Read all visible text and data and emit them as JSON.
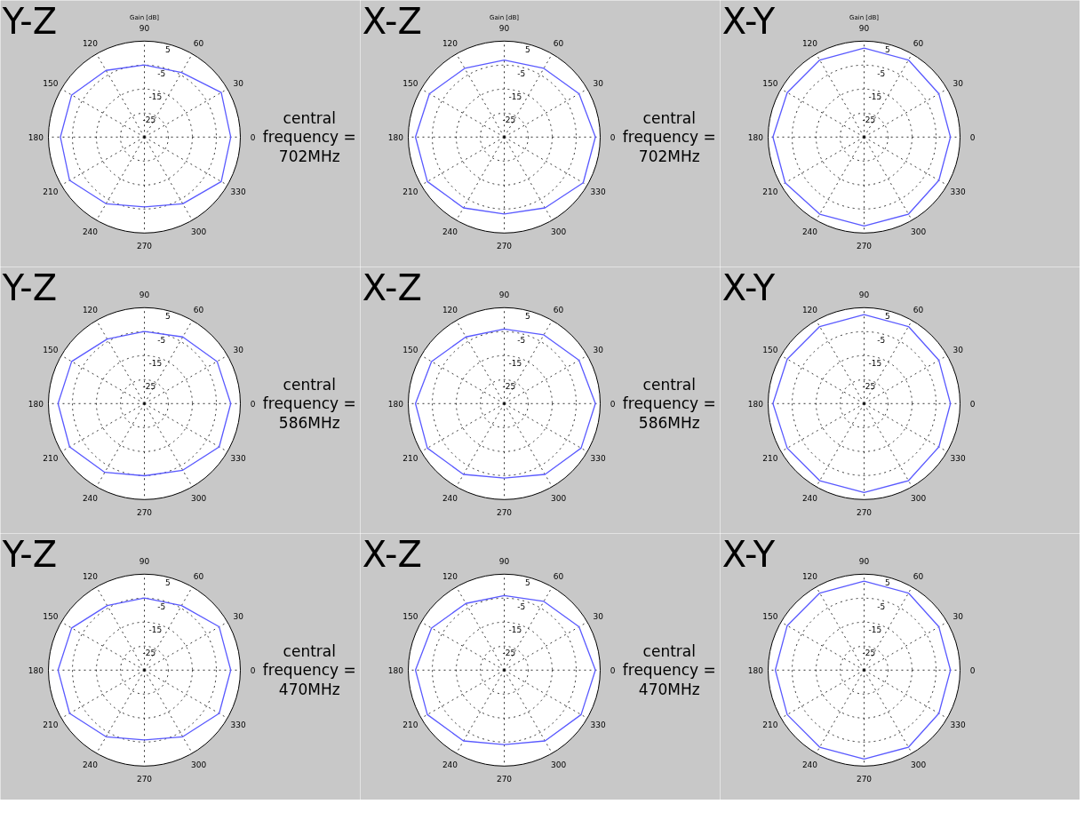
{
  "chart_data": [
    {
      "type": "radar",
      "title": "Y-Z",
      "subtitle": "Gain [dB]",
      "categories": [
        "90",
        "60",
        "30",
        "0",
        "330",
        "300",
        "270",
        "240",
        "210",
        "180",
        "150",
        "120"
      ],
      "ylim": [
        -35,
        5
      ],
      "yticks": [
        -25,
        -15,
        -5,
        5
      ],
      "grid": true,
      "line_style": "solid",
      "annotations": [
        "central frequency = 702MHz"
      ],
      "series": [
        {
          "color": "#5a5aff",
          "values": [
            -5,
            -4,
            2,
            1,
            2,
            -3,
            -6,
            -3,
            1,
            0,
            0,
            -3
          ]
        }
      ]
    },
    {
      "type": "radar",
      "title": "X-Z",
      "subtitle": "Gain [dB]",
      "categories": [
        "90",
        "60",
        "30",
        "0",
        "330",
        "300",
        "270",
        "240",
        "210",
        "180",
        "150",
        "120"
      ],
      "ylim": [
        -35,
        5
      ],
      "yticks": [
        -25,
        -15,
        -5,
        5
      ],
      "grid": true,
      "line_style": "solid",
      "annotations": [
        "central frequency = 702MHz"
      ],
      "series": [
        {
          "color": "#5a5aff",
          "values": [
            -3,
            -2,
            1,
            3,
            3,
            -1,
            -3,
            -1,
            2,
            2,
            1,
            -2
          ]
        }
      ]
    },
    {
      "type": "radar",
      "title": "X-Y",
      "subtitle": "Gain [dB]",
      "categories": [
        "90",
        "60",
        "30",
        "0",
        "330",
        "300",
        "270",
        "240",
        "210",
        "180",
        "150",
        "120"
      ],
      "ylim": [
        -35,
        5
      ],
      "yticks": [
        -25,
        -15,
        -5,
        5
      ],
      "grid": true,
      "line_style": "solid",
      "series": [
        {
          "color": "#5a5aff",
          "values": [
            2,
            2,
            1,
            1,
            1,
            2,
            2,
            2,
            3,
            3,
            2,
            2
          ]
        }
      ]
    },
    {
      "type": "radar",
      "title": "Y-Z",
      "categories": [
        "90",
        "60",
        "30",
        "0",
        "330",
        "300",
        "270",
        "240",
        "210",
        "180",
        "150",
        "120"
      ],
      "ylim": [
        -35,
        5
      ],
      "yticks": [
        -25,
        -15,
        -5,
        5
      ],
      "grid": true,
      "line_style": "solid",
      "annotations": [
        "central frequency = 586MHz"
      ],
      "series": [
        {
          "color": "#5a5aff",
          "values": [
            -5,
            -3,
            0,
            1,
            1,
            -3,
            -5,
            -2,
            1,
            1,
            0,
            -4
          ]
        }
      ]
    },
    {
      "type": "radar",
      "title": "X-Z",
      "categories": [
        "90",
        "60",
        "30",
        "0",
        "330",
        "300",
        "270",
        "240",
        "210",
        "180",
        "150",
        "120"
      ],
      "ylim": [
        -35,
        5
      ],
      "yticks": [
        -25,
        -15,
        -5,
        5
      ],
      "grid": true,
      "line_style": "solid",
      "annotations": [
        "central frequency = 586MHz"
      ],
      "series": [
        {
          "color": "#5a5aff",
          "values": [
            -4,
            -2,
            1,
            3,
            2,
            -1,
            -4,
            -1,
            2,
            2,
            0,
            -3
          ]
        }
      ]
    },
    {
      "type": "radar",
      "title": "X-Y",
      "categories": [
        "90",
        "60",
        "30",
        "0",
        "330",
        "300",
        "270",
        "240",
        "210",
        "180",
        "150",
        "120"
      ],
      "ylim": [
        -35,
        5
      ],
      "yticks": [
        -25,
        -15,
        -5,
        5
      ],
      "grid": true,
      "line_style": "solid",
      "series": [
        {
          "color": "#5a5aff",
          "values": [
            2,
            2,
            1,
            1,
            1,
            2,
            2,
            2,
            2,
            3,
            2,
            2
          ]
        }
      ]
    },
    {
      "type": "radar",
      "title": "Y-Z",
      "categories": [
        "90",
        "60",
        "30",
        "0",
        "330",
        "300",
        "270",
        "240",
        "210",
        "180",
        "150",
        "120"
      ],
      "ylim": [
        -35,
        5
      ],
      "yticks": [
        -25,
        -15,
        -5,
        5
      ],
      "grid": true,
      "line_style": "solid",
      "annotations": [
        "central frequency = 470MHz"
      ],
      "series": [
        {
          "color": "#5a5aff",
          "values": [
            -5,
            -4,
            1,
            1,
            1,
            -3,
            -6,
            -3,
            1,
            1,
            0,
            -4
          ]
        }
      ]
    },
    {
      "type": "radar",
      "title": "X-Z",
      "categories": [
        "90",
        "60",
        "30",
        "0",
        "330",
        "300",
        "270",
        "240",
        "210",
        "180",
        "150",
        "120"
      ],
      "ylim": [
        -35,
        5
      ],
      "yticks": [
        -25,
        -15,
        -5,
        5
      ],
      "grid": true,
      "line_style": "solid",
      "annotations": [
        "central frequency = 470MHz"
      ],
      "series": [
        {
          "color": "#5a5aff",
          "values": [
            -4,
            -2,
            1,
            3,
            2,
            -1,
            -4,
            -1,
            2,
            2,
            0,
            -3
          ]
        }
      ]
    },
    {
      "type": "radar",
      "title": "X-Y",
      "categories": [
        "90",
        "60",
        "30",
        "0",
        "330",
        "300",
        "270",
        "240",
        "210",
        "180",
        "150",
        "120"
      ],
      "ylim": [
        -35,
        5
      ],
      "yticks": [
        -25,
        -15,
        -5,
        5
      ],
      "grid": true,
      "line_style": "solid",
      "series": [
        {
          "color": "#5a5aff",
          "values": [
            2,
            2,
            1,
            1,
            1,
            2,
            2,
            2,
            2,
            2,
            2,
            2
          ]
        }
      ]
    }
  ]
}
